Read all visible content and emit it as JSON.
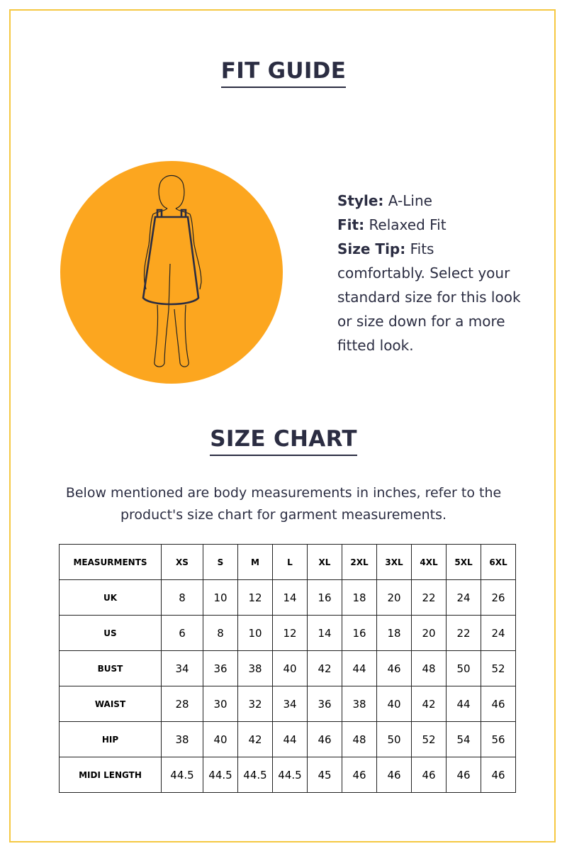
{
  "fit_guide": {
    "title": "FIT GUIDE",
    "illustration": {
      "circle_color": "#fca61f",
      "icon": "a-line-dress-figure-icon"
    },
    "style_label": "Style:",
    "style_value": "A-Line",
    "fit_label": "Fit:",
    "fit_value": "Relaxed Fit",
    "tip_label": "Size Tip:",
    "tip_value": "Fits comfortably. Select your standard size for this look or size down for a more fitted look."
  },
  "size_chart": {
    "title": "SIZE CHART",
    "note": "Below mentioned are body measurements in inches, refer to the product's size chart for garment measurements.",
    "header": [
      "MEASURMENTS",
      "XS",
      "S",
      "M",
      "L",
      "XL",
      "2XL",
      "3XL",
      "4XL",
      "5XL",
      "6XL"
    ],
    "rows": [
      {
        "label": "UK",
        "values": [
          "8",
          "10",
          "12",
          "14",
          "16",
          "18",
          "20",
          "22",
          "24",
          "26"
        ]
      },
      {
        "label": "US",
        "values": [
          "6",
          "8",
          "10",
          "12",
          "14",
          "16",
          "18",
          "20",
          "22",
          "24"
        ]
      },
      {
        "label": "BUST",
        "values": [
          "34",
          "36",
          "38",
          "40",
          "42",
          "44",
          "46",
          "48",
          "50",
          "52"
        ]
      },
      {
        "label": "WAIST",
        "values": [
          "28",
          "30",
          "32",
          "34",
          "36",
          "38",
          "40",
          "42",
          "44",
          "46"
        ]
      },
      {
        "label": "HIP",
        "values": [
          "38",
          "40",
          "42",
          "44",
          "46",
          "48",
          "50",
          "52",
          "54",
          "56"
        ]
      },
      {
        "label": "MIDI LENGTH",
        "values": [
          "44.5",
          "44.5",
          "44.5",
          "44.5",
          "45",
          "46",
          "46",
          "46",
          "46",
          "46"
        ]
      }
    ]
  },
  "colors": {
    "frame": "#f5c842",
    "text": "#2b2d42",
    "accent": "#fca61f"
  }
}
